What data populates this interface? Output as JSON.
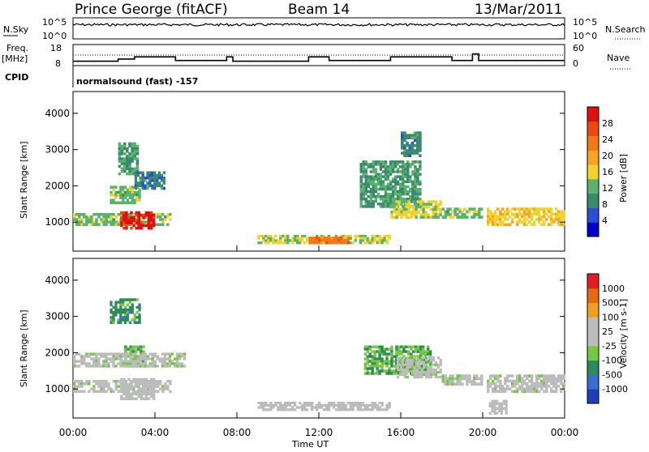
{
  "header": {
    "station": "Prince George (fitACF)",
    "beam": "Beam 14",
    "date": "13/Mar/2011"
  },
  "left_labels": {
    "nsky": "N.Sky",
    "freq": "Freq.",
    "freq_unit": "[MHz]",
    "cpid": "CPID"
  },
  "right_labels": {
    "nsearch": "N.Search",
    "nave": "Nave"
  },
  "cpid_text": "normalsound (fast) -157",
  "colors": {
    "power_scale": [
      "#0000cc",
      "#2a4fd6",
      "#3b8a6e",
      "#59b36a",
      "#f2d22e",
      "#f6a623",
      "#f07a15",
      "#ea4a10",
      "#e01010"
    ],
    "velocity_scale": [
      "#1f3fb8",
      "#3a6fcf",
      "#2e8a58",
      "#74c842",
      "#bcbcbc",
      "#bcbcbc",
      "#f0a020",
      "#e86a10",
      "#e02020"
    ]
  },
  "chart_data": [
    {
      "type": "line",
      "title": "N.Sky / N.Search",
      "y_ticks_left": [
        "10^5",
        "10^0"
      ],
      "y_ticks_right": [
        "10^5",
        "10^0"
      ],
      "x": [
        0,
        2,
        4,
        6,
        8,
        10,
        12,
        14,
        16,
        18,
        20,
        22,
        24
      ],
      "series": [
        {
          "name": "N.Sky",
          "values": [
            100000,
            100000,
            100000,
            100000,
            100000,
            100000,
            100000,
            100000,
            100000,
            100000,
            100000,
            100000,
            100000
          ]
        }
      ]
    },
    {
      "type": "line",
      "title": "Freq. / Nave",
      "y_ticks_left": [
        "18",
        "8"
      ],
      "y_ticks_right": [
        "60",
        "0"
      ],
      "series": [
        {
          "name": "Freq.",
          "x": [
            0,
            2.2,
            2.2,
            3.0,
            3.0,
            5.0,
            5.0,
            7.5,
            7.5,
            7.8,
            7.8,
            11.5,
            11.5,
            12.5,
            12.5,
            15.5,
            15.5,
            18.5,
            18.5,
            19.5,
            19.5,
            19.8,
            19.8,
            24
          ],
          "values": [
            11,
            11,
            12.5,
            12.5,
            14,
            14,
            11.5,
            11.5,
            14,
            14,
            11,
            11,
            14,
            14,
            11.5,
            11.5,
            14,
            14,
            11.5,
            11.5,
            16,
            16,
            11.5,
            11.5
          ]
        },
        {
          "name": "Nave",
          "x": [
            0,
            24
          ],
          "values": [
            30,
            30
          ]
        }
      ]
    },
    {
      "type": "heatmap",
      "title": "Power",
      "xlabel": "",
      "ylabel": "Slant Range [km]",
      "colorbar_label": "Power [dB]",
      "colorbar_ticks": [
        "28",
        "24",
        "20",
        "16",
        "12",
        "8",
        "4"
      ],
      "x_ticks": [
        "00:00",
        "04:00",
        "08:00",
        "12:00",
        "16:00",
        "20:00",
        "00:00"
      ],
      "y_ticks": [
        "4000",
        "3000",
        "2000",
        "1000"
      ],
      "xlim": [
        0,
        24
      ],
      "ylim": [
        200,
        4600
      ],
      "regions": [
        {
          "t": [
            0.0,
            4.8
          ],
          "r": [
            900,
            1250
          ],
          "p": 12
        },
        {
          "t": [
            2.3,
            4.0
          ],
          "r": [
            800,
            1300
          ],
          "p": 28
        },
        {
          "t": [
            1.8,
            3.3
          ],
          "r": [
            1500,
            2000
          ],
          "p": 12
        },
        {
          "t": [
            2.2,
            3.2
          ],
          "r": [
            2300,
            3200
          ],
          "p": 10
        },
        {
          "t": [
            3.0,
            4.5
          ],
          "r": [
            1900,
            2400
          ],
          "p": 8
        },
        {
          "t": [
            9.0,
            15.5
          ],
          "r": [
            400,
            650
          ],
          "p": 14
        },
        {
          "t": [
            11.5,
            13.5
          ],
          "r": [
            400,
            600
          ],
          "p": 22
        },
        {
          "t": [
            14.0,
            17.0
          ],
          "r": [
            1400,
            2700
          ],
          "p": 10
        },
        {
          "t": [
            15.5,
            18.0
          ],
          "r": [
            1100,
            1600
          ],
          "p": 14
        },
        {
          "t": [
            16.0,
            17.0
          ],
          "r": [
            2800,
            3500
          ],
          "p": 8
        },
        {
          "t": [
            18.0,
            20.0
          ],
          "r": [
            1100,
            1400
          ],
          "p": 12
        },
        {
          "t": [
            20.2,
            24.0
          ],
          "r": [
            900,
            1400
          ],
          "p": 16
        }
      ]
    },
    {
      "type": "heatmap",
      "title": "Velocity",
      "xlabel": "Time UT",
      "ylabel": "Slant Range [km]",
      "colorbar_label": "Velocity [m s-1]",
      "colorbar_ticks": [
        "1000",
        "500",
        "100",
        "25",
        "-25",
        "-100",
        "-500",
        "-1000"
      ],
      "x_ticks": [
        "00:00",
        "04:00",
        "08:00",
        "12:00",
        "16:00",
        "20:00",
        "00:00"
      ],
      "y_ticks": [
        "4000",
        "3000",
        "2000",
        "1000"
      ],
      "xlim": [
        0,
        24
      ],
      "ylim": [
        200,
        4600
      ],
      "regions": [
        {
          "t": [
            0.0,
            4.8
          ],
          "r": [
            900,
            1250
          ],
          "v": 0
        },
        {
          "t": [
            2.3,
            4.0
          ],
          "r": [
            700,
            1300
          ],
          "v": 100
        },
        {
          "t": [
            1.8,
            3.3
          ],
          "r": [
            2800,
            3500
          ],
          "v": -500
        },
        {
          "t": [
            2.5,
            3.5
          ],
          "r": [
            1600,
            2200
          ],
          "v": -300
        },
        {
          "t": [
            0.0,
            5.5
          ],
          "r": [
            1600,
            2000
          ],
          "v": 0
        },
        {
          "t": [
            9.0,
            15.5
          ],
          "r": [
            400,
            650
          ],
          "v": 100
        },
        {
          "t": [
            14.2,
            17.5
          ],
          "r": [
            1400,
            2200
          ],
          "v": -400
        },
        {
          "t": [
            15.8,
            18.0
          ],
          "r": [
            1300,
            1900
          ],
          "v": 0
        },
        {
          "t": [
            18.0,
            20.0
          ],
          "r": [
            1100,
            1400
          ],
          "v": 0
        },
        {
          "t": [
            20.2,
            24.0
          ],
          "r": [
            900,
            1400
          ],
          "v": 0
        },
        {
          "t": [
            20.3,
            21.2
          ],
          "r": [
            300,
            700
          ],
          "v": 100
        }
      ]
    }
  ]
}
